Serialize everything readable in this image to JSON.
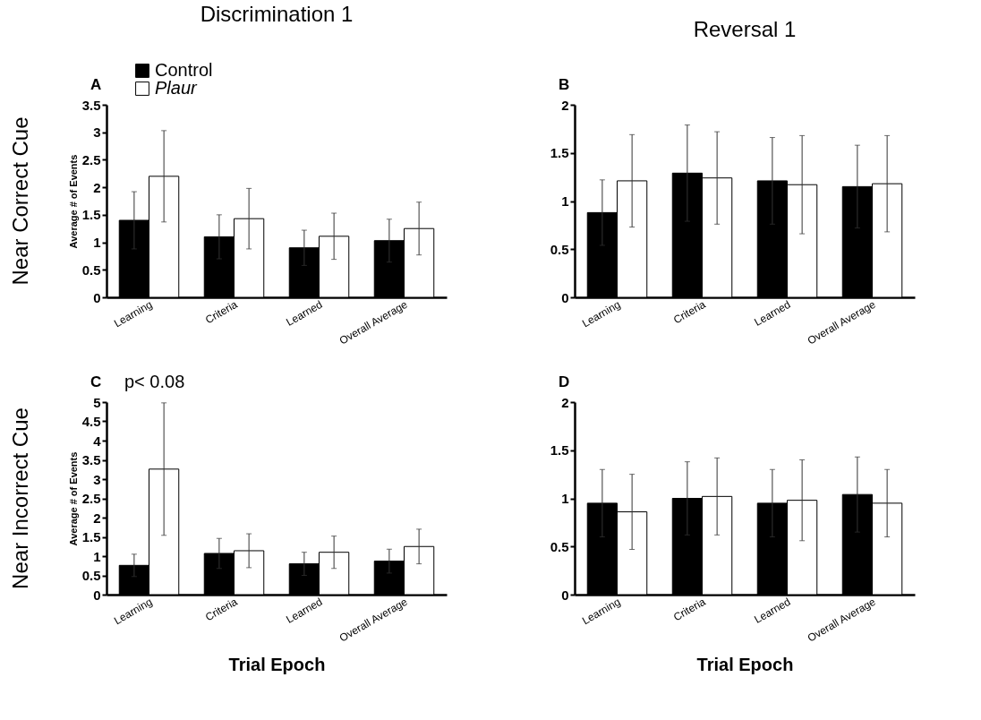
{
  "chart_data": [
    {
      "type": "bar",
      "title": "Discrimination 1",
      "ylabel": "Average # of Events",
      "annotations": [
        "A",
        "Near Correct Cue"
      ],
      "categories": [
        "Learning",
        "Criteria",
        "Learned",
        "Overall Average"
      ],
      "legend": "top left",
      "ylim": [
        0,
        3.5
      ],
      "yticks": [
        0,
        0.5,
        1,
        1.5,
        2,
        2.5,
        3,
        3.5
      ],
      "series": [
        {
          "name": "Control",
          "color": "#000000",
          "values": [
            1.4,
            1.1,
            0.9,
            1.03
          ],
          "errors": [
            0.52,
            0.4,
            0.32,
            0.39
          ]
        },
        {
          "name": "Plaur",
          "color": "#ffffff",
          "values": [
            2.2,
            1.43,
            1.11,
            1.25
          ],
          "errors": [
            0.83,
            0.55,
            0.42,
            0.48
          ]
        }
      ]
    },
    {
      "type": "bar",
      "title": "Reversal 1",
      "annotations": [
        "B"
      ],
      "categories": [
        "Learning",
        "Criteria",
        "Learned",
        "Overall Average"
      ],
      "ylim": [
        0,
        2
      ],
      "yticks": [
        0,
        0.5,
        1,
        1.5,
        2
      ],
      "series": [
        {
          "color": "#000000",
          "values": [
            0.88,
            1.29,
            1.21,
            1.15
          ],
          "errors": [
            0.34,
            0.5,
            0.45,
            0.43
          ]
        },
        {
          "color": "#ffffff",
          "values": [
            1.21,
            1.24,
            1.17,
            1.18
          ],
          "errors": [
            0.48,
            0.48,
            0.51,
            0.5
          ]
        }
      ]
    },
    {
      "type": "bar",
      "xlabel": "Trial Epoch",
      "ylabel": "Average # of Events",
      "annotations": [
        "C",
        "p< 0.08",
        "Near Incorrect Cue"
      ],
      "categories": [
        "Learning",
        "Criteria",
        "Learned",
        "Overall Average"
      ],
      "ylim": [
        0,
        5
      ],
      "yticks": [
        0,
        0.5,
        1,
        1.5,
        2,
        2.5,
        3,
        3.5,
        4,
        4.5,
        5
      ],
      "series": [
        {
          "color": "#000000",
          "values": [
            0.76,
            1.07,
            0.8,
            0.87
          ],
          "errors": [
            0.29,
            0.39,
            0.3,
            0.31
          ]
        },
        {
          "color": "#ffffff",
          "values": [
            3.26,
            1.14,
            1.1,
            1.25
          ],
          "errors": [
            1.72,
            0.44,
            0.42,
            0.45
          ]
        }
      ]
    },
    {
      "type": "bar",
      "xlabel": "Trial Epoch",
      "annotations": [
        "D"
      ],
      "categories": [
        "Learning",
        "Criteria",
        "Learned",
        "Overall Average"
      ],
      "ylim": [
        0,
        2
      ],
      "yticks": [
        0,
        0.5,
        1,
        1.5,
        2
      ],
      "series": [
        {
          "color": "#000000",
          "values": [
            0.95,
            1.0,
            0.95,
            1.04
          ],
          "errors": [
            0.35,
            0.38,
            0.35,
            0.39
          ]
        },
        {
          "color": "#ffffff",
          "values": [
            0.86,
            1.02,
            0.98,
            0.95
          ],
          "errors": [
            0.39,
            0.4,
            0.42,
            0.35
          ]
        }
      ]
    }
  ]
}
